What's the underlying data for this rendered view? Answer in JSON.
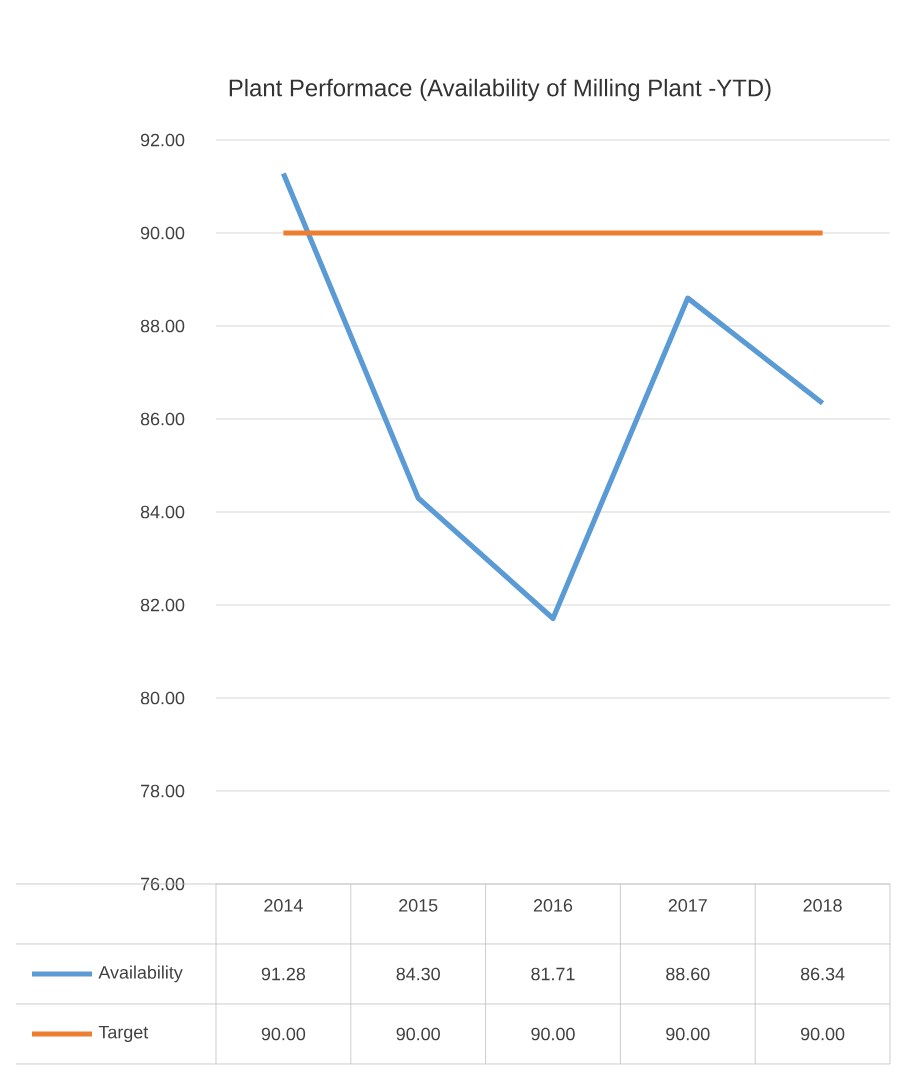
{
  "chart_data": {
    "type": "line",
    "title": "Plant Performace (Availability of Milling Plant -YTD)",
    "categories": [
      "2014",
      "2015",
      "2016",
      "2017",
      "2018"
    ],
    "series": [
      {
        "name": "Availability",
        "color": "#5b9bd5",
        "values": [
          91.28,
          84.3,
          81.71,
          88.6,
          86.34
        ],
        "value_labels": [
          "91.28",
          "84.30",
          "81.71",
          "88.60",
          "86.34"
        ]
      },
      {
        "name": "Target",
        "color": "#ed7d31",
        "values": [
          90,
          90,
          90,
          90,
          90
        ],
        "value_labels": [
          "90.00",
          "90.00",
          "90.00",
          "90.00",
          "90.00"
        ]
      }
    ],
    "ylim": [
      76,
      92
    ],
    "yticks": [
      {
        "value": 76,
        "label": "76.00"
      },
      {
        "value": 78,
        "label": "78.00"
      },
      {
        "value": 80,
        "label": "80.00"
      },
      {
        "value": 82,
        "label": "82.00"
      },
      {
        "value": 84,
        "label": "84.00"
      },
      {
        "value": 86,
        "label": "86.00"
      },
      {
        "value": 88,
        "label": "88.00"
      },
      {
        "value": 90,
        "label": "90.00"
      },
      {
        "value": 92,
        "label": "92.00"
      }
    ],
    "grid": "y",
    "legend": "bottom",
    "marker": "none",
    "line_style": "solid"
  }
}
